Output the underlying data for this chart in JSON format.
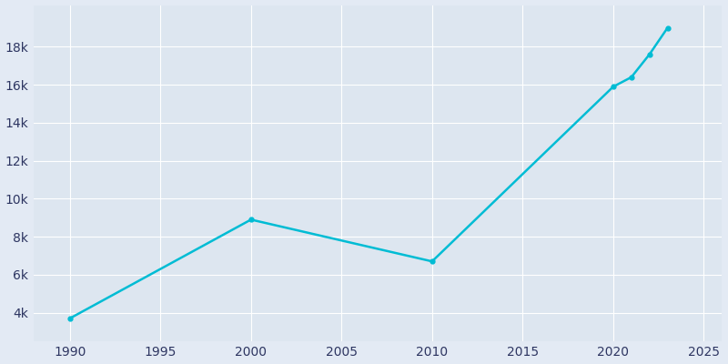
{
  "years": [
    1990,
    2000,
    2010,
    2020,
    2021,
    2022,
    2023
  ],
  "population": [
    3700,
    8900,
    6700,
    15900,
    16400,
    17600,
    19000
  ],
  "line_color": "#00BCD4",
  "bg_color": "#E3EAF4",
  "plot_bg_color": "#DDE6F0",
  "grid_color": "#FFFFFF",
  "tick_label_color": "#2d3561",
  "xlim": [
    1988,
    2026
  ],
  "ylim": [
    2500,
    20200
  ],
  "xticks": [
    1990,
    1995,
    2000,
    2005,
    2010,
    2015,
    2020,
    2025
  ],
  "yticks": [
    4000,
    6000,
    8000,
    10000,
    12000,
    14000,
    16000,
    18000
  ],
  "ytick_labels": [
    "4k",
    "6k",
    "8k",
    "10k",
    "12k",
    "14k",
    "16k",
    "18k"
  ],
  "linewidth": 1.8,
  "marker": "o",
  "markersize": 3.5
}
